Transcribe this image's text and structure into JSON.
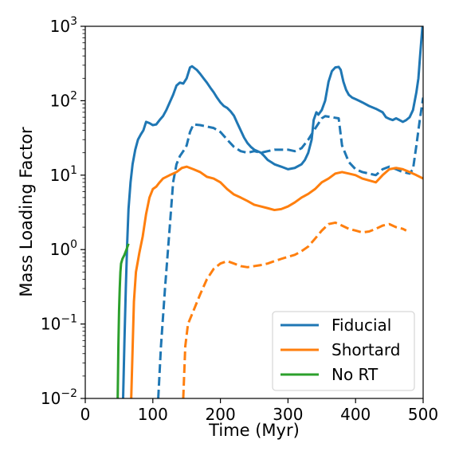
{
  "chart_data": {
    "type": "line",
    "title": "",
    "xlabel": "Time (Myr)",
    "ylabel": "Mass Loading Factor",
    "xlim": [
      0,
      500
    ],
    "ylim": [
      0.01,
      1000
    ],
    "yscale": "log",
    "grid": false,
    "legend_position": "lower-right",
    "x_ticks": [
      {
        "value": 0,
        "label": "0"
      },
      {
        "value": 100,
        "label": "100"
      },
      {
        "value": 200,
        "label": "200"
      },
      {
        "value": 300,
        "label": "300"
      },
      {
        "value": 400,
        "label": "400"
      },
      {
        "value": 500,
        "label": "500"
      }
    ],
    "y_ticks": [
      {
        "value": 0.01,
        "base": "10",
        "exp": "−2"
      },
      {
        "value": 0.1,
        "base": "10",
        "exp": "−1"
      },
      {
        "value": 1,
        "base": "10",
        "exp": "0"
      },
      {
        "value": 10,
        "base": "10",
        "exp": "1"
      },
      {
        "value": 100,
        "base": "10",
        "exp": "2"
      },
      {
        "value": 1000,
        "base": "10",
        "exp": "3"
      }
    ],
    "legend": [
      {
        "label": "Fiducial",
        "color": "#1f77b4"
      },
      {
        "label": "Shortard",
        "color": "#ff7f0e"
      },
      {
        "label": "No RT",
        "color": "#2ca02c"
      }
    ],
    "series": [
      {
        "name": "Fiducial",
        "color": "#1f77b4",
        "style": "solid",
        "points": [
          [
            56,
            0.01
          ],
          [
            58,
            0.06
          ],
          [
            60,
            0.3
          ],
          [
            62,
            1.2
          ],
          [
            64,
            3.5
          ],
          [
            67,
            8
          ],
          [
            70,
            14
          ],
          [
            74,
            22
          ],
          [
            78,
            30
          ],
          [
            82,
            35
          ],
          [
            86,
            40
          ],
          [
            90,
            52
          ],
          [
            95,
            50
          ],
          [
            100,
            47
          ],
          [
            105,
            48
          ],
          [
            110,
            55
          ],
          [
            115,
            62
          ],
          [
            120,
            75
          ],
          [
            125,
            95
          ],
          [
            130,
            120
          ],
          [
            135,
            160
          ],
          [
            140,
            175
          ],
          [
            145,
            170
          ],
          [
            150,
            200
          ],
          [
            155,
            280
          ],
          [
            158,
            290
          ],
          [
            165,
            260
          ],
          [
            170,
            230
          ],
          [
            175,
            200
          ],
          [
            180,
            175
          ],
          [
            185,
            150
          ],
          [
            190,
            130
          ],
          [
            195,
            110
          ],
          [
            200,
            95
          ],
          [
            205,
            85
          ],
          [
            210,
            80
          ],
          [
            215,
            72
          ],
          [
            220,
            63
          ],
          [
            225,
            50
          ],
          [
            230,
            40
          ],
          [
            235,
            32
          ],
          [
            240,
            27
          ],
          [
            245,
            24
          ],
          [
            250,
            22
          ],
          [
            255,
            21
          ],
          [
            260,
            20
          ],
          [
            265,
            18
          ],
          [
            270,
            16
          ],
          [
            275,
            15
          ],
          [
            280,
            14
          ],
          [
            290,
            13
          ],
          [
            300,
            12
          ],
          [
            310,
            12.5
          ],
          [
            320,
            14
          ],
          [
            325,
            16
          ],
          [
            330,
            20
          ],
          [
            335,
            30
          ],
          [
            338,
            55
          ],
          [
            342,
            70
          ],
          [
            345,
            65
          ],
          [
            350,
            75
          ],
          [
            355,
            100
          ],
          [
            360,
            180
          ],
          [
            365,
            250
          ],
          [
            370,
            280
          ],
          [
            375,
            285
          ],
          [
            378,
            260
          ],
          [
            382,
            180
          ],
          [
            386,
            140
          ],
          [
            390,
            120
          ],
          [
            395,
            110
          ],
          [
            400,
            105
          ],
          [
            405,
            100
          ],
          [
            410,
            95
          ],
          [
            420,
            85
          ],
          [
            430,
            78
          ],
          [
            440,
            70
          ],
          [
            445,
            60
          ],
          [
            450,
            57
          ],
          [
            455,
            55
          ],
          [
            460,
            58
          ],
          [
            465,
            55
          ],
          [
            470,
            52
          ],
          [
            475,
            55
          ],
          [
            480,
            60
          ],
          [
            485,
            75
          ],
          [
            490,
            130
          ],
          [
            493,
            200
          ],
          [
            495,
            350
          ],
          [
            497,
            600
          ],
          [
            499,
            1000
          ]
        ]
      },
      {
        "name": "",
        "color": "#1f77b4",
        "style": "dashed",
        "points": [
          [
            108,
            0.01
          ],
          [
            112,
            0.05
          ],
          [
            118,
            0.3
          ],
          [
            125,
            2
          ],
          [
            130,
            8
          ],
          [
            135,
            14
          ],
          [
            140,
            18
          ],
          [
            145,
            21
          ],
          [
            150,
            25
          ],
          [
            155,
            38
          ],
          [
            160,
            48
          ],
          [
            170,
            47
          ],
          [
            180,
            45
          ],
          [
            190,
            43
          ],
          [
            200,
            38
          ],
          [
            210,
            30
          ],
          [
            220,
            24
          ],
          [
            230,
            21
          ],
          [
            240,
            20
          ],
          [
            250,
            21
          ],
          [
            260,
            20
          ],
          [
            270,
            21
          ],
          [
            280,
            22
          ],
          [
            290,
            22
          ],
          [
            300,
            22
          ],
          [
            310,
            21
          ],
          [
            320,
            23
          ],
          [
            330,
            30
          ],
          [
            340,
            42
          ],
          [
            350,
            58
          ],
          [
            355,
            62
          ],
          [
            365,
            60
          ],
          [
            375,
            58
          ],
          [
            380,
            25
          ],
          [
            390,
            15
          ],
          [
            400,
            12
          ],
          [
            410,
            11
          ],
          [
            420,
            10.5
          ],
          [
            430,
            10
          ],
          [
            440,
            12
          ],
          [
            450,
            13
          ],
          [
            460,
            12
          ],
          [
            470,
            11
          ],
          [
            480,
            10.5
          ],
          [
            485,
            12
          ],
          [
            490,
            25
          ],
          [
            495,
            55
          ],
          [
            500,
            110
          ]
        ]
      },
      {
        "name": "Shortard",
        "color": "#ff7f0e",
        "style": "solid",
        "points": [
          [
            68,
            0.01
          ],
          [
            72,
            0.2
          ],
          [
            75,
            0.5
          ],
          [
            80,
            0.9
          ],
          [
            85,
            1.5
          ],
          [
            90,
            3
          ],
          [
            95,
            5
          ],
          [
            100,
            6.5
          ],
          [
            105,
            7
          ],
          [
            110,
            8
          ],
          [
            115,
            9
          ],
          [
            125,
            10
          ],
          [
            135,
            11
          ],
          [
            143,
            12.5
          ],
          [
            150,
            13
          ],
          [
            160,
            12
          ],
          [
            170,
            11
          ],
          [
            180,
            9.5
          ],
          [
            190,
            9
          ],
          [
            200,
            8
          ],
          [
            210,
            6.5
          ],
          [
            220,
            5.5
          ],
          [
            230,
            5
          ],
          [
            240,
            4.5
          ],
          [
            250,
            4
          ],
          [
            260,
            3.8
          ],
          [
            270,
            3.6
          ],
          [
            280,
            3.4
          ],
          [
            290,
            3.5
          ],
          [
            300,
            3.8
          ],
          [
            310,
            4.3
          ],
          [
            320,
            5
          ],
          [
            330,
            5.6
          ],
          [
            340,
            6.5
          ],
          [
            350,
            8
          ],
          [
            360,
            9
          ],
          [
            370,
            10.5
          ],
          [
            380,
            11
          ],
          [
            390,
            10.5
          ],
          [
            400,
            10
          ],
          [
            410,
            9
          ],
          [
            420,
            8.5
          ],
          [
            430,
            8
          ],
          [
            440,
            10
          ],
          [
            450,
            12
          ],
          [
            460,
            12.5
          ],
          [
            470,
            12
          ],
          [
            480,
            11
          ],
          [
            490,
            10
          ],
          [
            500,
            9
          ]
        ]
      },
      {
        "name": "",
        "color": "#ff7f0e",
        "style": "dashed",
        "points": [
          [
            145,
            0.01
          ],
          [
            148,
            0.05
          ],
          [
            152,
            0.1
          ],
          [
            160,
            0.15
          ],
          [
            170,
            0.25
          ],
          [
            180,
            0.4
          ],
          [
            190,
            0.55
          ],
          [
            200,
            0.65
          ],
          [
            210,
            0.7
          ],
          [
            220,
            0.65
          ],
          [
            230,
            0.6
          ],
          [
            240,
            0.58
          ],
          [
            250,
            0.6
          ],
          [
            260,
            0.62
          ],
          [
            270,
            0.65
          ],
          [
            280,
            0.7
          ],
          [
            290,
            0.75
          ],
          [
            300,
            0.8
          ],
          [
            310,
            0.85
          ],
          [
            320,
            0.95
          ],
          [
            330,
            1.1
          ],
          [
            340,
            1.4
          ],
          [
            350,
            1.8
          ],
          [
            360,
            2.2
          ],
          [
            370,
            2.3
          ],
          [
            380,
            2.1
          ],
          [
            390,
            1.9
          ],
          [
            400,
            1.8
          ],
          [
            410,
            1.7
          ],
          [
            420,
            1.75
          ],
          [
            430,
            1.9
          ],
          [
            440,
            2.1
          ],
          [
            450,
            2.2
          ],
          [
            460,
            2.0
          ],
          [
            470,
            1.9
          ],
          [
            475,
            1.8
          ]
        ]
      },
      {
        "name": "No RT",
        "color": "#2ca02c",
        "style": "solid",
        "points": [
          [
            48,
            0.01
          ],
          [
            49,
            0.05
          ],
          [
            50,
            0.15
          ],
          [
            51,
            0.3
          ],
          [
            52,
            0.5
          ],
          [
            53,
            0.65
          ],
          [
            55,
            0.75
          ],
          [
            58,
            0.85
          ],
          [
            61,
            1.0
          ],
          [
            64,
            1.2
          ]
        ]
      }
    ]
  }
}
